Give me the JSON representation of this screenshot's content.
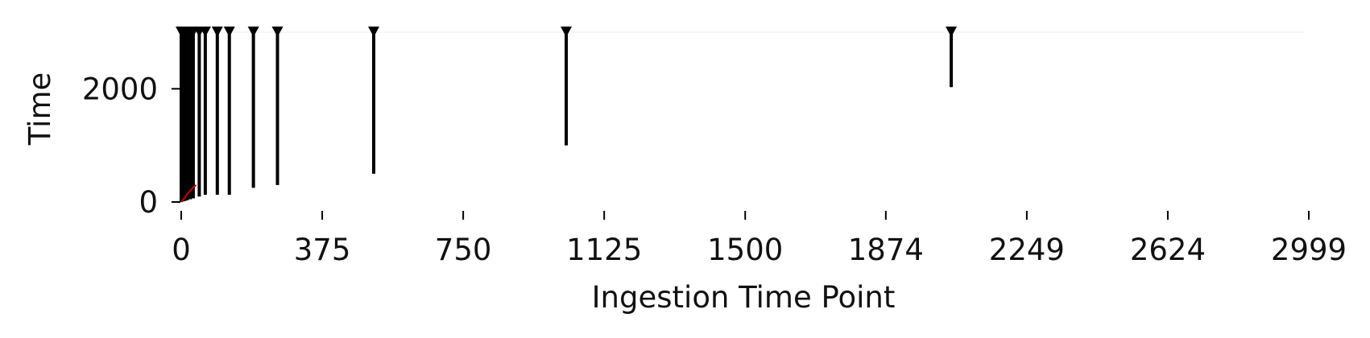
{
  "chart_data": {
    "type": "line",
    "title": "",
    "xlabel": "Ingestion Time Point",
    "ylabel": "Time",
    "xlim": [
      0,
      2999
    ],
    "ylim": [
      0,
      3000
    ],
    "x_ticks": [
      0,
      375,
      750,
      1125,
      1500,
      1874,
      2249,
      2624,
      2999
    ],
    "y_ticks": [
      0,
      2000
    ],
    "grid": false,
    "legend": "none",
    "colors": {
      "intervals": "#000000",
      "trace": "#cc0000",
      "axis": "#000000"
    },
    "intervals": [
      {
        "x": 0,
        "start": 0,
        "end": 3000
      },
      {
        "x": 4,
        "start": 8,
        "end": 3000
      },
      {
        "x": 8,
        "start": 16,
        "end": 3000
      },
      {
        "x": 12,
        "start": 24,
        "end": 3000
      },
      {
        "x": 16,
        "start": 32,
        "end": 3000
      },
      {
        "x": 24,
        "start": 48,
        "end": 3000
      },
      {
        "x": 32,
        "start": 64,
        "end": 3000
      },
      {
        "x": 48,
        "start": 96,
        "end": 3000
      },
      {
        "x": 64,
        "start": 128,
        "end": 3000
      },
      {
        "x": 96,
        "start": 128,
        "end": 3000
      },
      {
        "x": 128,
        "start": 128,
        "end": 3000
      },
      {
        "x": 192,
        "start": 250,
        "end": 3000
      },
      {
        "x": 256,
        "start": 300,
        "end": 3000
      },
      {
        "x": 512,
        "start": 500,
        "end": 3000
      },
      {
        "x": 1024,
        "start": 1000,
        "end": 3000
      },
      {
        "x": 2048,
        "start": 2030,
        "end": 3000
      }
    ],
    "trace": {
      "x": [
        0,
        8,
        16,
        24,
        32,
        40
      ],
      "y": [
        0,
        60,
        140,
        200,
        260,
        300
      ]
    }
  }
}
